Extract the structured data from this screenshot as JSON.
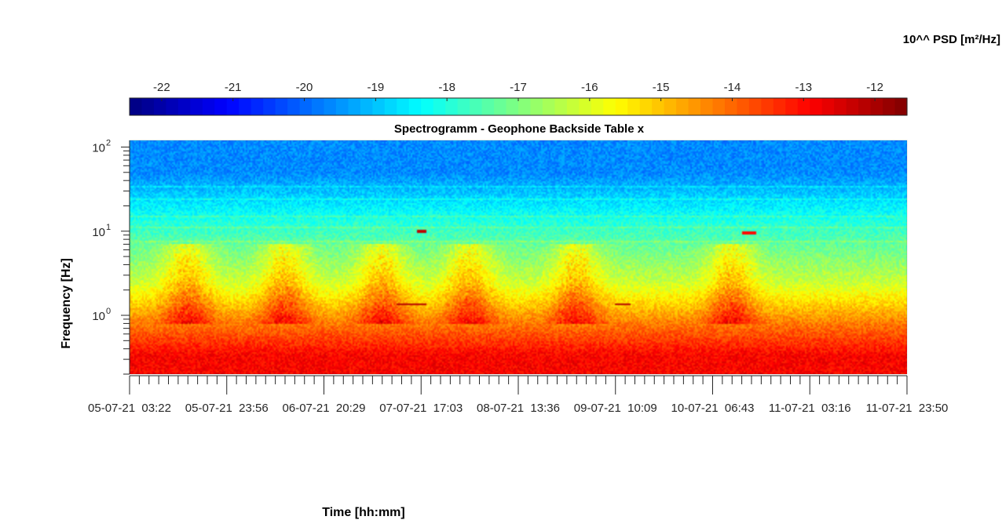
{
  "chart_data": {
    "type": "heatmap",
    "title": "Spectrogramm - Geophone Backside Table x",
    "xlabel": "Time [hh:mm]",
    "ylabel": "Frequency [Hz]",
    "colorbar_label": "10^^ PSD [m²/Hz]",
    "colormap": "jet",
    "colorbar_range": [
      -22.45,
      -11.55
    ],
    "colorbar_ticks": [
      "-22",
      "-21",
      "-20",
      "-19",
      "-18",
      "-17",
      "-16",
      "-15",
      "-14",
      "-13",
      "-12"
    ],
    "colorbar_tick_values": [
      -22,
      -21,
      -20,
      -19,
      -18,
      -17,
      -16,
      -15,
      -14,
      -13,
      -12
    ],
    "y_scale": "log",
    "ylim": [
      0.2,
      120
    ],
    "y_tick_labels": [
      "10",
      "10",
      "10"
    ],
    "y_tick_exponents": [
      "0",
      "1",
      "2"
    ],
    "y_tick_values": [
      1,
      10,
      100
    ],
    "x_tick_labels": [
      "05-07-21  03:22",
      "05-07-21  23:56",
      "06-07-21  20:29",
      "07-07-21  17:03",
      "08-07-21  13:36",
      "09-07-21  10:09",
      "10-07-21  06:43",
      "11-07-21  03:16",
      "11-07-21  23:50"
    ],
    "x_tick_positions": [
      0,
      1,
      2,
      3,
      4,
      5,
      6,
      7,
      8
    ],
    "minor_ticks_per_interval": 10,
    "features": {
      "bands": [
        {
          "f_low": 0.2,
          "f_high": 0.55,
          "log_psd": -12.9
        },
        {
          "f_low": 0.55,
          "f_high": 1.0,
          "log_psd": -14.1
        },
        {
          "f_low": 1.0,
          "f_high": 6.0,
          "log_psd": -16.2
        },
        {
          "f_low": 6.0,
          "f_high": 20,
          "log_psd": -17.8
        },
        {
          "f_low": 20,
          "f_high": 120,
          "log_psd": -19.6
        }
      ],
      "line_frequencies_hz": [
        7.5,
        11,
        15,
        24,
        34
      ],
      "daytime_bursts_day_centres": [
        0.6,
        1.6,
        2.6,
        3.5,
        4.6,
        6.2
      ],
      "narrowband_events": [
        {
          "t_start": 2.75,
          "t_end": 3.05,
          "freq_hz": 1.35,
          "log_psd": -12.1
        },
        {
          "t_start": 5.0,
          "t_end": 5.15,
          "freq_hz": 1.35,
          "log_psd": -12.1
        },
        {
          "t_start": 2.95,
          "t_end": 3.05,
          "freq_hz": 10,
          "log_psd": -12.2
        },
        {
          "t_start": 6.3,
          "t_end": 6.45,
          "freq_hz": 9.5,
          "log_psd": -13.0
        }
      ]
    }
  }
}
